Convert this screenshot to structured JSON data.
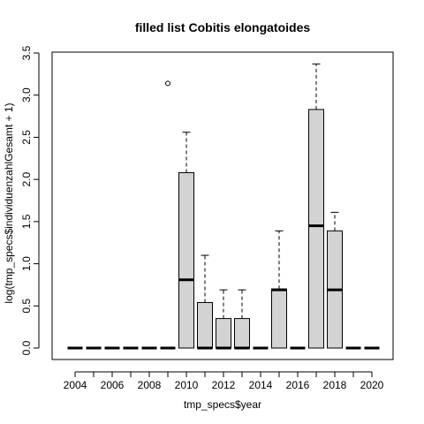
{
  "chart_data": {
    "type": "boxplot",
    "title": "filled list Cobitis elongatoides",
    "xlabel": "tmp_specs$year",
    "ylabel": "log(tmp_specs$individuenzahlGesamt + 1)",
    "ylim": [
      0,
      3.5
    ],
    "y_ticks": [
      "0.0",
      "0.5",
      "1.0",
      "1.5",
      "2.0",
      "2.5",
      "3.0",
      "3.5"
    ],
    "x_tick_labels": [
      "2004",
      "2006",
      "2008",
      "2010",
      "2012",
      "2014",
      "2016",
      "2018",
      "2020"
    ],
    "grid": false,
    "box_fill": "#d3d3d3",
    "boxes": [
      {
        "year": "2004",
        "min": 0,
        "q1": 0,
        "median": 0,
        "q3": 0,
        "max": 0,
        "outliers": []
      },
      {
        "year": "2005",
        "min": 0,
        "q1": 0,
        "median": 0,
        "q3": 0,
        "max": 0,
        "outliers": []
      },
      {
        "year": "2006",
        "min": 0,
        "q1": 0,
        "median": 0,
        "q3": 0,
        "max": 0,
        "outliers": []
      },
      {
        "year": "2007",
        "min": 0,
        "q1": 0,
        "median": 0,
        "q3": 0,
        "max": 0,
        "outliers": []
      },
      {
        "year": "2008",
        "min": 0,
        "q1": 0,
        "median": 0,
        "q3": 0,
        "max": 0,
        "outliers": []
      },
      {
        "year": "2009",
        "min": 0,
        "q1": 0,
        "median": 0,
        "q3": 0,
        "max": 0,
        "outliers": [
          3.14
        ]
      },
      {
        "year": "2010",
        "min": 0,
        "q1": 0,
        "median": 0.81,
        "q3": 2.08,
        "max": 2.56,
        "outliers": []
      },
      {
        "year": "2011",
        "min": 0,
        "q1": 0,
        "median": 0,
        "q3": 0.54,
        "max": 1.1,
        "outliers": []
      },
      {
        "year": "2012",
        "min": 0,
        "q1": 0,
        "median": 0,
        "q3": 0.35,
        "max": 0.69,
        "outliers": []
      },
      {
        "year": "2013",
        "min": 0,
        "q1": 0,
        "median": 0,
        "q3": 0.35,
        "max": 0.69,
        "outliers": []
      },
      {
        "year": "2014",
        "min": 0,
        "q1": 0,
        "median": 0,
        "q3": 0,
        "max": 0,
        "outliers": []
      },
      {
        "year": "2015",
        "min": 0,
        "q1": 0,
        "median": 0.69,
        "q3": 0.7,
        "max": 1.39,
        "outliers": []
      },
      {
        "year": "2016",
        "min": 0,
        "q1": 0,
        "median": 0,
        "q3": 0,
        "max": 0,
        "outliers": []
      },
      {
        "year": "2017",
        "min": 0,
        "q1": 0,
        "median": 1.45,
        "q3": 2.83,
        "max": 3.37,
        "outliers": []
      },
      {
        "year": "2018",
        "min": 0,
        "q1": 0,
        "median": 0.69,
        "q3": 1.39,
        "max": 1.61,
        "outliers": []
      },
      {
        "year": "2019",
        "min": 0,
        "q1": 0,
        "median": 0,
        "q3": 0,
        "max": 0,
        "outliers": []
      },
      {
        "year": "2020",
        "min": 0,
        "q1": 0,
        "median": 0,
        "q3": 0,
        "max": 0,
        "outliers": []
      }
    ]
  }
}
